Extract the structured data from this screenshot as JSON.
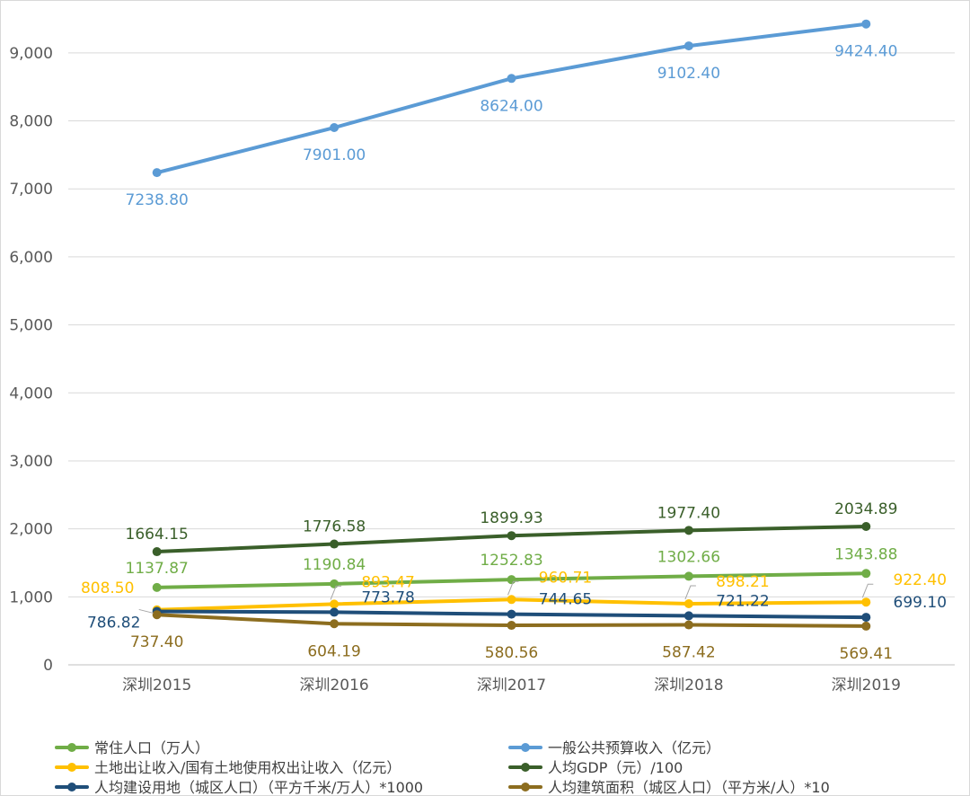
{
  "chart_data": {
    "type": "line",
    "categories": [
      "深圳2015",
      "深圳2016",
      "深圳2017",
      "深圳2018",
      "深圳2019"
    ],
    "ylim": [
      0,
      9500
    ],
    "yticks": [
      0,
      1000,
      2000,
      3000,
      4000,
      5000,
      6000,
      7000,
      8000,
      9000
    ],
    "ytick_labels": [
      "0",
      "1,000",
      "2,000",
      "3,000",
      "4,000",
      "5,000",
      "6,000",
      "7,000",
      "8,000",
      "9,000"
    ],
    "grid": true,
    "legend_position": "bottom",
    "series": [
      {
        "name": "常住人口（万人）",
        "color": "#70ad47",
        "values": [
          1137.87,
          1190.84,
          1252.83,
          1302.66,
          1343.88
        ],
        "labels": [
          "1137.87",
          "1190.84",
          "1252.83",
          "1302.66",
          "1343.88"
        ]
      },
      {
        "name": "一般公共预算收入（亿元）",
        "color": "#5b9bd5",
        "values": [
          7238.8,
          7901.0,
          8624.0,
          9102.4,
          9424.4
        ],
        "labels": [
          "7238.80",
          "7901.00",
          "8624.00",
          "9102.40",
          "9424.40"
        ]
      },
      {
        "name": "土地出让收入/国有土地使用权出让收入（亿元）",
        "color": "#ffc000",
        "values": [
          808.5,
          893.47,
          960.71,
          898.21,
          922.4
        ],
        "labels": [
          "808.50",
          "893.47",
          "960.71",
          "898.21",
          "922.40"
        ]
      },
      {
        "name": "人均GDP（元）/100",
        "color": "#3a5f2a",
        "values": [
          1664.15,
          1776.58,
          1899.93,
          1977.4,
          2034.89
        ],
        "labels": [
          "1664.15",
          "1776.58",
          "1899.93",
          "1977.40",
          "2034.89"
        ]
      },
      {
        "name": "人均建设用地（城区人口）（平方千米/万人）*1000",
        "color": "#1f4e79",
        "values": [
          786.82,
          773.78,
          744.65,
          721.22,
          699.1
        ],
        "labels": [
          "786.82",
          "773.78",
          "744.65",
          "721.22",
          "699.10"
        ]
      },
      {
        "name": "人均建筑面积（城区人口）（平方米/人）*10",
        "color": "#8c6d1f",
        "values": [
          737.4,
          604.19,
          580.56,
          587.42,
          569.41
        ],
        "labels": [
          "737.40",
          "604.19",
          "580.56",
          "587.42",
          "569.41"
        ]
      }
    ]
  }
}
